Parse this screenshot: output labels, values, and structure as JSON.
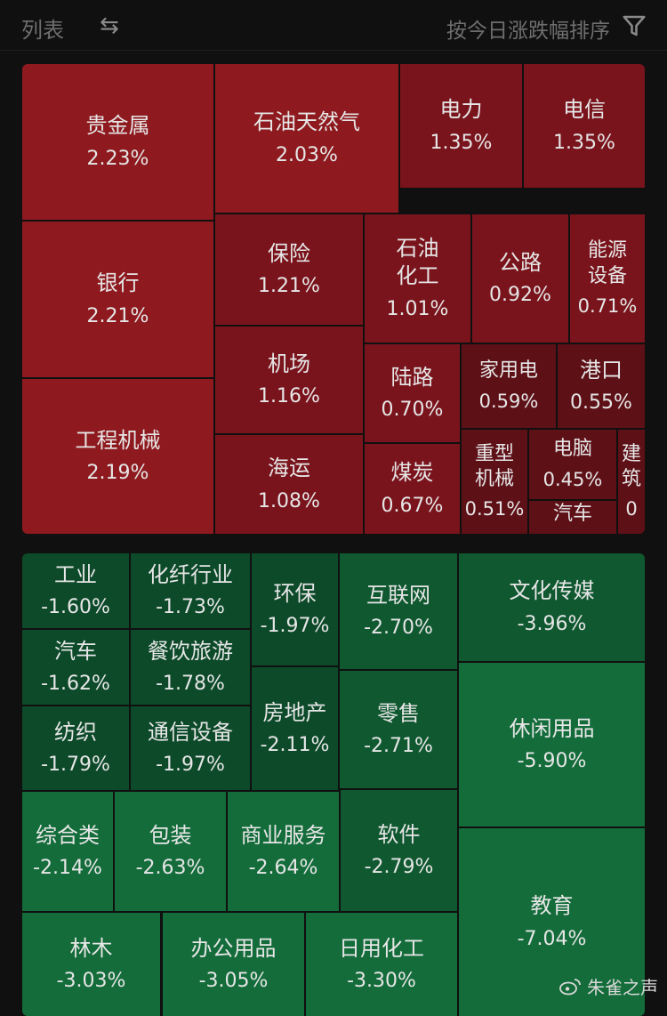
{
  "header": {
    "title": "列表",
    "swap_icon": "⇆",
    "sort_label": "按今日涨跌幅排序"
  },
  "colors": {
    "red_strong": "#8e1a1f",
    "red_mid": "#7a141c",
    "red_dark": "#5e1017",
    "green_strong": "#136c3a",
    "green_mid": "#0f5830",
    "green_dark": "#0c4a29"
  },
  "gainers": [
    {
      "name": "贵金属",
      "value": "2.23%"
    },
    {
      "name": "石油天然气",
      "value": "2.03%"
    },
    {
      "name": "电力",
      "value": "1.35%"
    },
    {
      "name": "电信",
      "value": "1.35%"
    },
    {
      "name": "银行",
      "value": "2.21%"
    },
    {
      "name": "保险",
      "value": "1.21%"
    },
    {
      "name": "石油\n化工",
      "value": "1.01%"
    },
    {
      "name": "公路",
      "value": "0.92%"
    },
    {
      "name": "能源\n设备",
      "value": "0.71%"
    },
    {
      "name": "工程机械",
      "value": "2.19%"
    },
    {
      "name": "机场",
      "value": "1.16%"
    },
    {
      "name": "陆路",
      "value": "0.70%"
    },
    {
      "name": "家用电",
      "value": "0.59%"
    },
    {
      "name": "港口",
      "value": "0.55%"
    },
    {
      "name": "海运",
      "value": "1.08%"
    },
    {
      "name": "煤炭",
      "value": "0.67%"
    },
    {
      "name": "重型\n机械",
      "value": "0.51%"
    },
    {
      "name": "电脑",
      "value": "0.45%"
    },
    {
      "name": "汽车",
      "value": ""
    },
    {
      "name": "建筑",
      "value": "0"
    }
  ],
  "losers": [
    {
      "name": "工业",
      "value": "-1.60%"
    },
    {
      "name": "化纤行业",
      "value": "-1.73%"
    },
    {
      "name": "环保",
      "value": "-1.97%"
    },
    {
      "name": "互联网",
      "value": "-2.70%"
    },
    {
      "name": "文化传媒",
      "value": "-3.96%"
    },
    {
      "name": "汽车",
      "value": "-1.62%"
    },
    {
      "name": "餐饮旅游",
      "value": "-1.78%"
    },
    {
      "name": "纺织",
      "value": "-1.79%"
    },
    {
      "name": "通信设备",
      "value": "-1.97%"
    },
    {
      "name": "房地产",
      "value": "-2.11%"
    },
    {
      "name": "零售",
      "value": "-2.71%"
    },
    {
      "name": "休闲用品",
      "value": "-5.90%"
    },
    {
      "name": "综合类",
      "value": "-2.14%"
    },
    {
      "name": "包装",
      "value": "-2.63%"
    },
    {
      "name": "商业服务",
      "value": "-2.64%"
    },
    {
      "name": "软件",
      "value": "-2.79%"
    },
    {
      "name": "教育",
      "value": "-7.04%"
    },
    {
      "name": "林木",
      "value": "-3.03%"
    },
    {
      "name": "办公用品",
      "value": "-3.05%"
    },
    {
      "name": "日用化工",
      "value": "-3.30%"
    }
  ],
  "watermark": "朱雀之声"
}
